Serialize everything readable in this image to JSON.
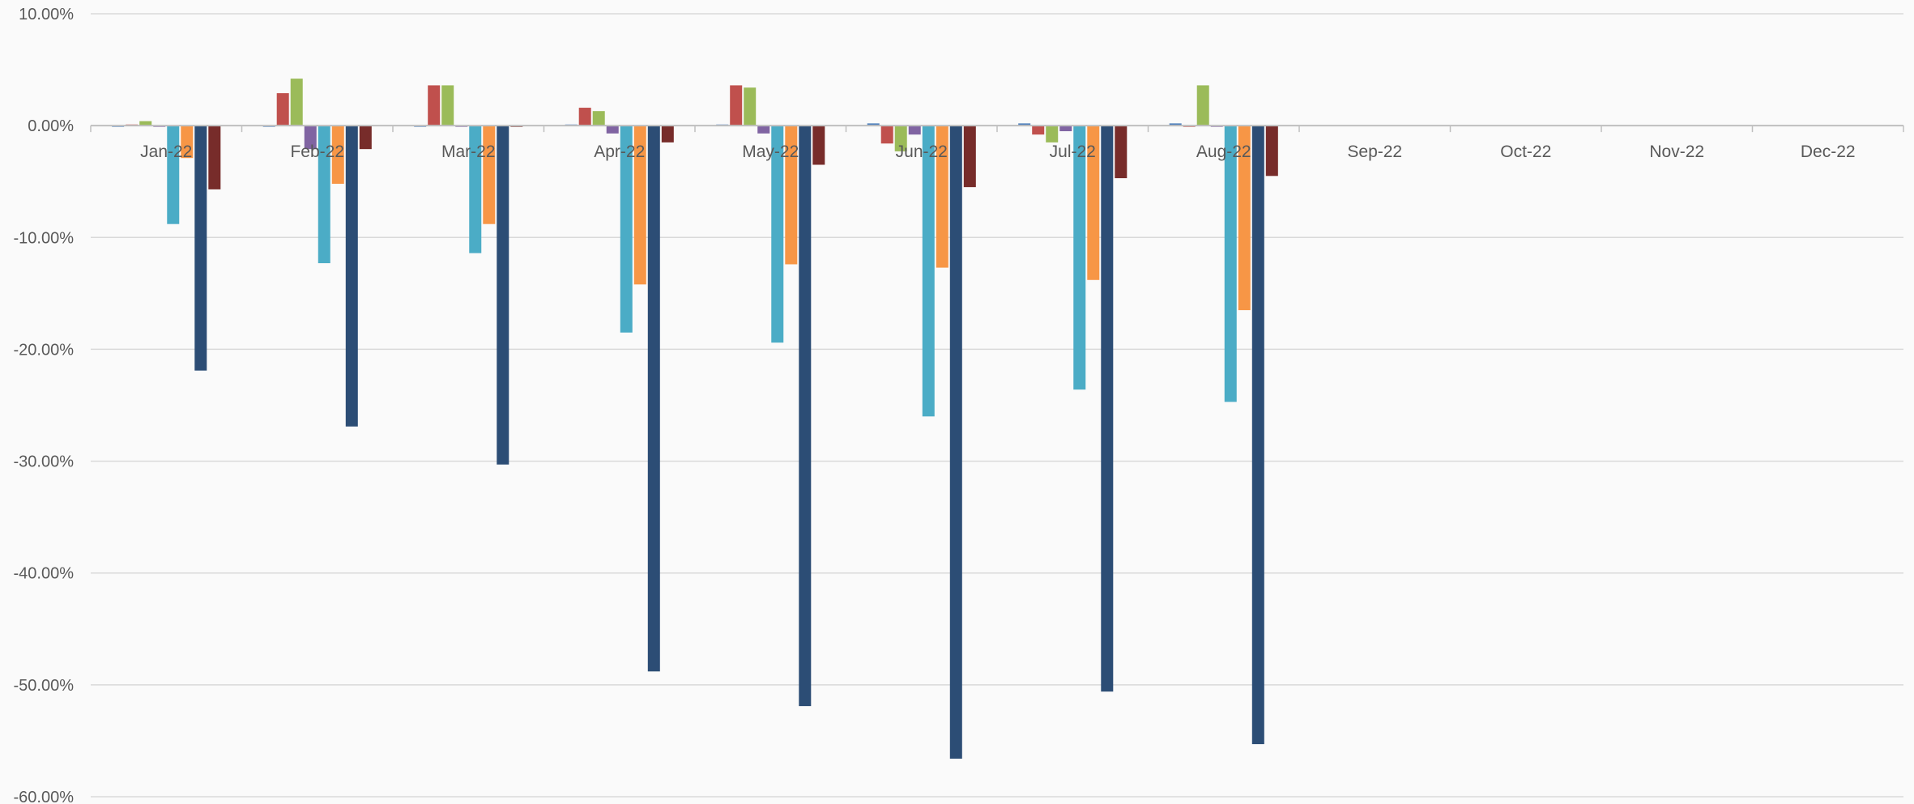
{
  "chart_data": {
    "type": "bar",
    "title": "",
    "xlabel": "",
    "ylabel": "",
    "y_format": "percent",
    "ylim": [
      -60,
      10
    ],
    "y_ticks": [
      10,
      0,
      -10,
      -20,
      -30,
      -40,
      -50,
      -60
    ],
    "y_tick_labels": [
      "10.00%",
      "0.00%",
      "-10.00%",
      "-20.00%",
      "-30.00%",
      "-40.00%",
      "-50.00%",
      "-60.00%"
    ],
    "grid": true,
    "legend": "none",
    "categories": [
      "Jan-22",
      "Feb-22",
      "Mar-22",
      "Apr-22",
      "May-22",
      "Jun-22",
      "Jul-22",
      "Aug-22",
      "Sep-22",
      "Oct-22",
      "Nov-22",
      "Dec-22"
    ],
    "series": [
      {
        "color": "#4f81bd",
        "values": [
          0.0,
          0.0,
          0.0,
          0.1,
          0.1,
          0.2,
          0.2,
          0.2,
          null,
          null,
          null,
          null
        ]
      },
      {
        "color": "#c0504d",
        "values": [
          0.1,
          2.9,
          3.6,
          1.6,
          3.6,
          -1.6,
          -0.8,
          0.0,
          null,
          null,
          null,
          null
        ]
      },
      {
        "color": "#9bbb59",
        "values": [
          0.4,
          4.2,
          3.6,
          1.3,
          3.4,
          -2.3,
          -1.5,
          3.6,
          null,
          null,
          null,
          null
        ]
      },
      {
        "color": "#8064a2",
        "values": [
          0.0,
          -2.1,
          0.0,
          -0.7,
          -0.7,
          -0.8,
          -0.5,
          0.0,
          null,
          null,
          null,
          null
        ]
      },
      {
        "color": "#4bacc6",
        "values": [
          -8.8,
          -12.3,
          -11.4,
          -18.5,
          -19.4,
          -26.0,
          -23.6,
          -24.7,
          null,
          null,
          null,
          null
        ]
      },
      {
        "color": "#f79646",
        "values": [
          -2.9,
          -5.2,
          -8.8,
          -14.2,
          -12.4,
          -12.7,
          -13.8,
          -16.5,
          null,
          null,
          null,
          null
        ]
      },
      {
        "color": "#2c4d75",
        "values": [
          -21.9,
          -26.9,
          -30.3,
          -48.8,
          -51.9,
          -56.6,
          -50.6,
          -55.3,
          null,
          null,
          null,
          null
        ]
      },
      {
        "color": "#772c2a",
        "values": [
          -5.7,
          -2.1,
          -0.1,
          -1.5,
          -3.5,
          -5.5,
          -4.7,
          -4.5,
          null,
          null,
          null,
          null
        ]
      }
    ]
  }
}
